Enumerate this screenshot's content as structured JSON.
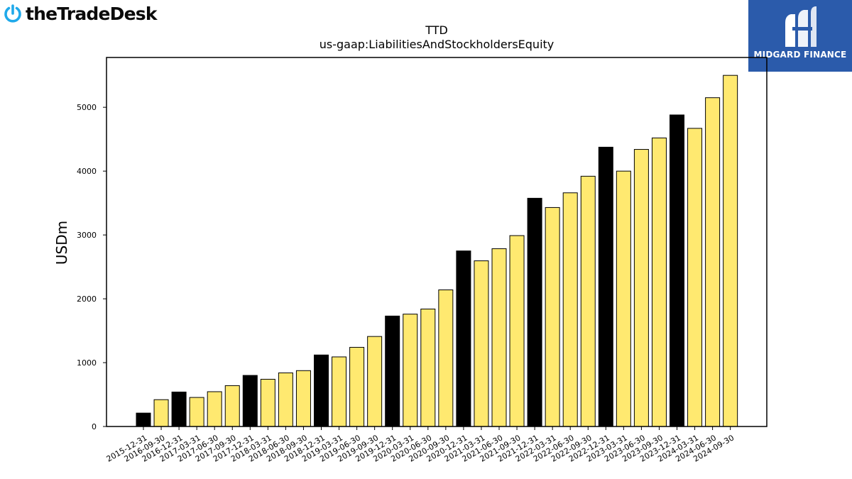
{
  "logos": {
    "left_text": "theTradeDesk",
    "left_icon": "power-icon",
    "right_text": "MIDGARD FINANCE",
    "right_icon": "midgard-mark-icon"
  },
  "colors": {
    "year_end_bar": "#000000",
    "quarter_bar": "#ffe970",
    "brand_blue": "#2b5bab",
    "icon_blue": "#1fa9ea"
  },
  "chart_data": {
    "type": "bar",
    "title": "TTD",
    "subtitle": "us-gaap:LiabilitiesAndStockholdersEquity",
    "xlabel": "",
    "ylabel": "USDm",
    "ylim": [
      0,
      5780
    ],
    "yticks": [
      0,
      1000,
      2000,
      3000,
      4000,
      5000
    ],
    "grid": false,
    "legend": "none",
    "categories": [
      "2015-12-31",
      "2016-09-30",
      "2016-12-31",
      "2017-03-31",
      "2017-06-30",
      "2017-09-30",
      "2017-12-31",
      "2018-03-31",
      "2018-06-30",
      "2018-09-30",
      "2018-12-31",
      "2019-03-31",
      "2019-06-30",
      "2019-09-30",
      "2019-12-31",
      "2020-03-31",
      "2020-06-30",
      "2020-09-30",
      "2020-12-31",
      "2021-03-31",
      "2021-06-30",
      "2021-09-30",
      "2021-12-31",
      "2022-03-31",
      "2022-06-30",
      "2022-09-30",
      "2022-12-31",
      "2023-03-31",
      "2023-06-30",
      "2023-09-30",
      "2023-12-31",
      "2024-03-31",
      "2024-06-30",
      "2024-09-30"
    ],
    "values": [
      210,
      420,
      540,
      455,
      545,
      640,
      800,
      740,
      840,
      875,
      1120,
      1090,
      1240,
      1410,
      1730,
      1760,
      1840,
      2140,
      2750,
      2595,
      2785,
      2990,
      3575,
      3430,
      3660,
      3920,
      4375,
      4000,
      4340,
      4520,
      4880,
      4670,
      5150,
      5500
    ],
    "year_end": [
      true,
      false,
      true,
      false,
      false,
      false,
      true,
      false,
      false,
      false,
      true,
      false,
      false,
      false,
      true,
      false,
      false,
      false,
      true,
      false,
      false,
      false,
      true,
      false,
      false,
      false,
      true,
      false,
      false,
      false,
      true,
      false,
      false,
      false
    ]
  }
}
